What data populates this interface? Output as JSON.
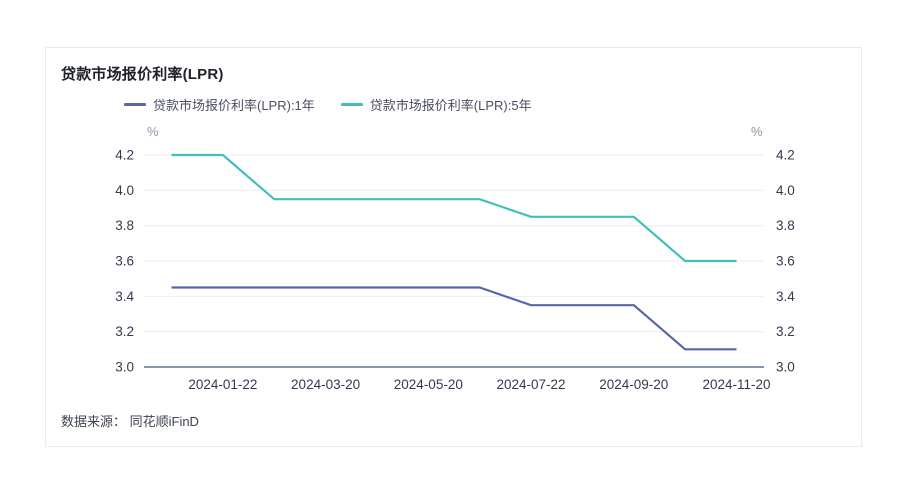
{
  "card": {
    "title": "贷款市场报价利率(LPR)",
    "source": "数据来源： 同花顺iFinD"
  },
  "legend": [
    {
      "label": "贷款市场报价利率(LPR):1年",
      "color": "#5767A6"
    },
    {
      "label": "贷款市场报价利率(LPR):5年",
      "color": "#41C0B5"
    }
  ],
  "colors": {
    "series_1y": "#5767A6",
    "series_5y": "#41C0B5",
    "axis_line": "#8793AF",
    "gridline": "#ededf2",
    "tick_label": "#343950",
    "unit_label": "#9096a4"
  },
  "chart_data": {
    "type": "line",
    "title": "贷款市场报价利率(LPR)",
    "x": [
      "2023-12-20",
      "2024-01-22",
      "2024-02-20",
      "2024-03-20",
      "2024-04-22",
      "2024-05-20",
      "2024-06-20",
      "2024-07-22",
      "2024-08-20",
      "2024-09-20",
      "2024-10-21",
      "2024-11-20"
    ],
    "series": [
      {
        "name": "贷款市场报价利率(LPR):1年",
        "color": "#5767A6",
        "values": [
          3.45,
          3.45,
          3.45,
          3.45,
          3.45,
          3.45,
          3.45,
          3.35,
          3.35,
          3.35,
          3.1,
          3.1
        ]
      },
      {
        "name": "贷款市场报价利率(LPR):5年",
        "color": "#41C0B5",
        "values": [
          4.2,
          4.2,
          3.95,
          3.95,
          3.95,
          3.95,
          3.95,
          3.85,
          3.85,
          3.85,
          3.6,
          3.6
        ]
      }
    ],
    "ylabel_left": "%",
    "ylabel_right": "%",
    "ylim": [
      3.0,
      4.2
    ],
    "yticks": [
      "3.0",
      "3.2",
      "3.4",
      "3.6",
      "3.8",
      "4.0",
      "4.2"
    ],
    "xtick_indices": [
      1,
      3,
      5,
      7,
      9,
      11
    ],
    "xtick_labels": [
      "2024-01-22",
      "2024-03-20",
      "2024-05-20",
      "2024-07-22",
      "2024-09-20",
      "2024-11-20"
    ],
    "grid": true,
    "legend_position": "top-left",
    "source": "数据来源： 同花顺iFinD"
  }
}
